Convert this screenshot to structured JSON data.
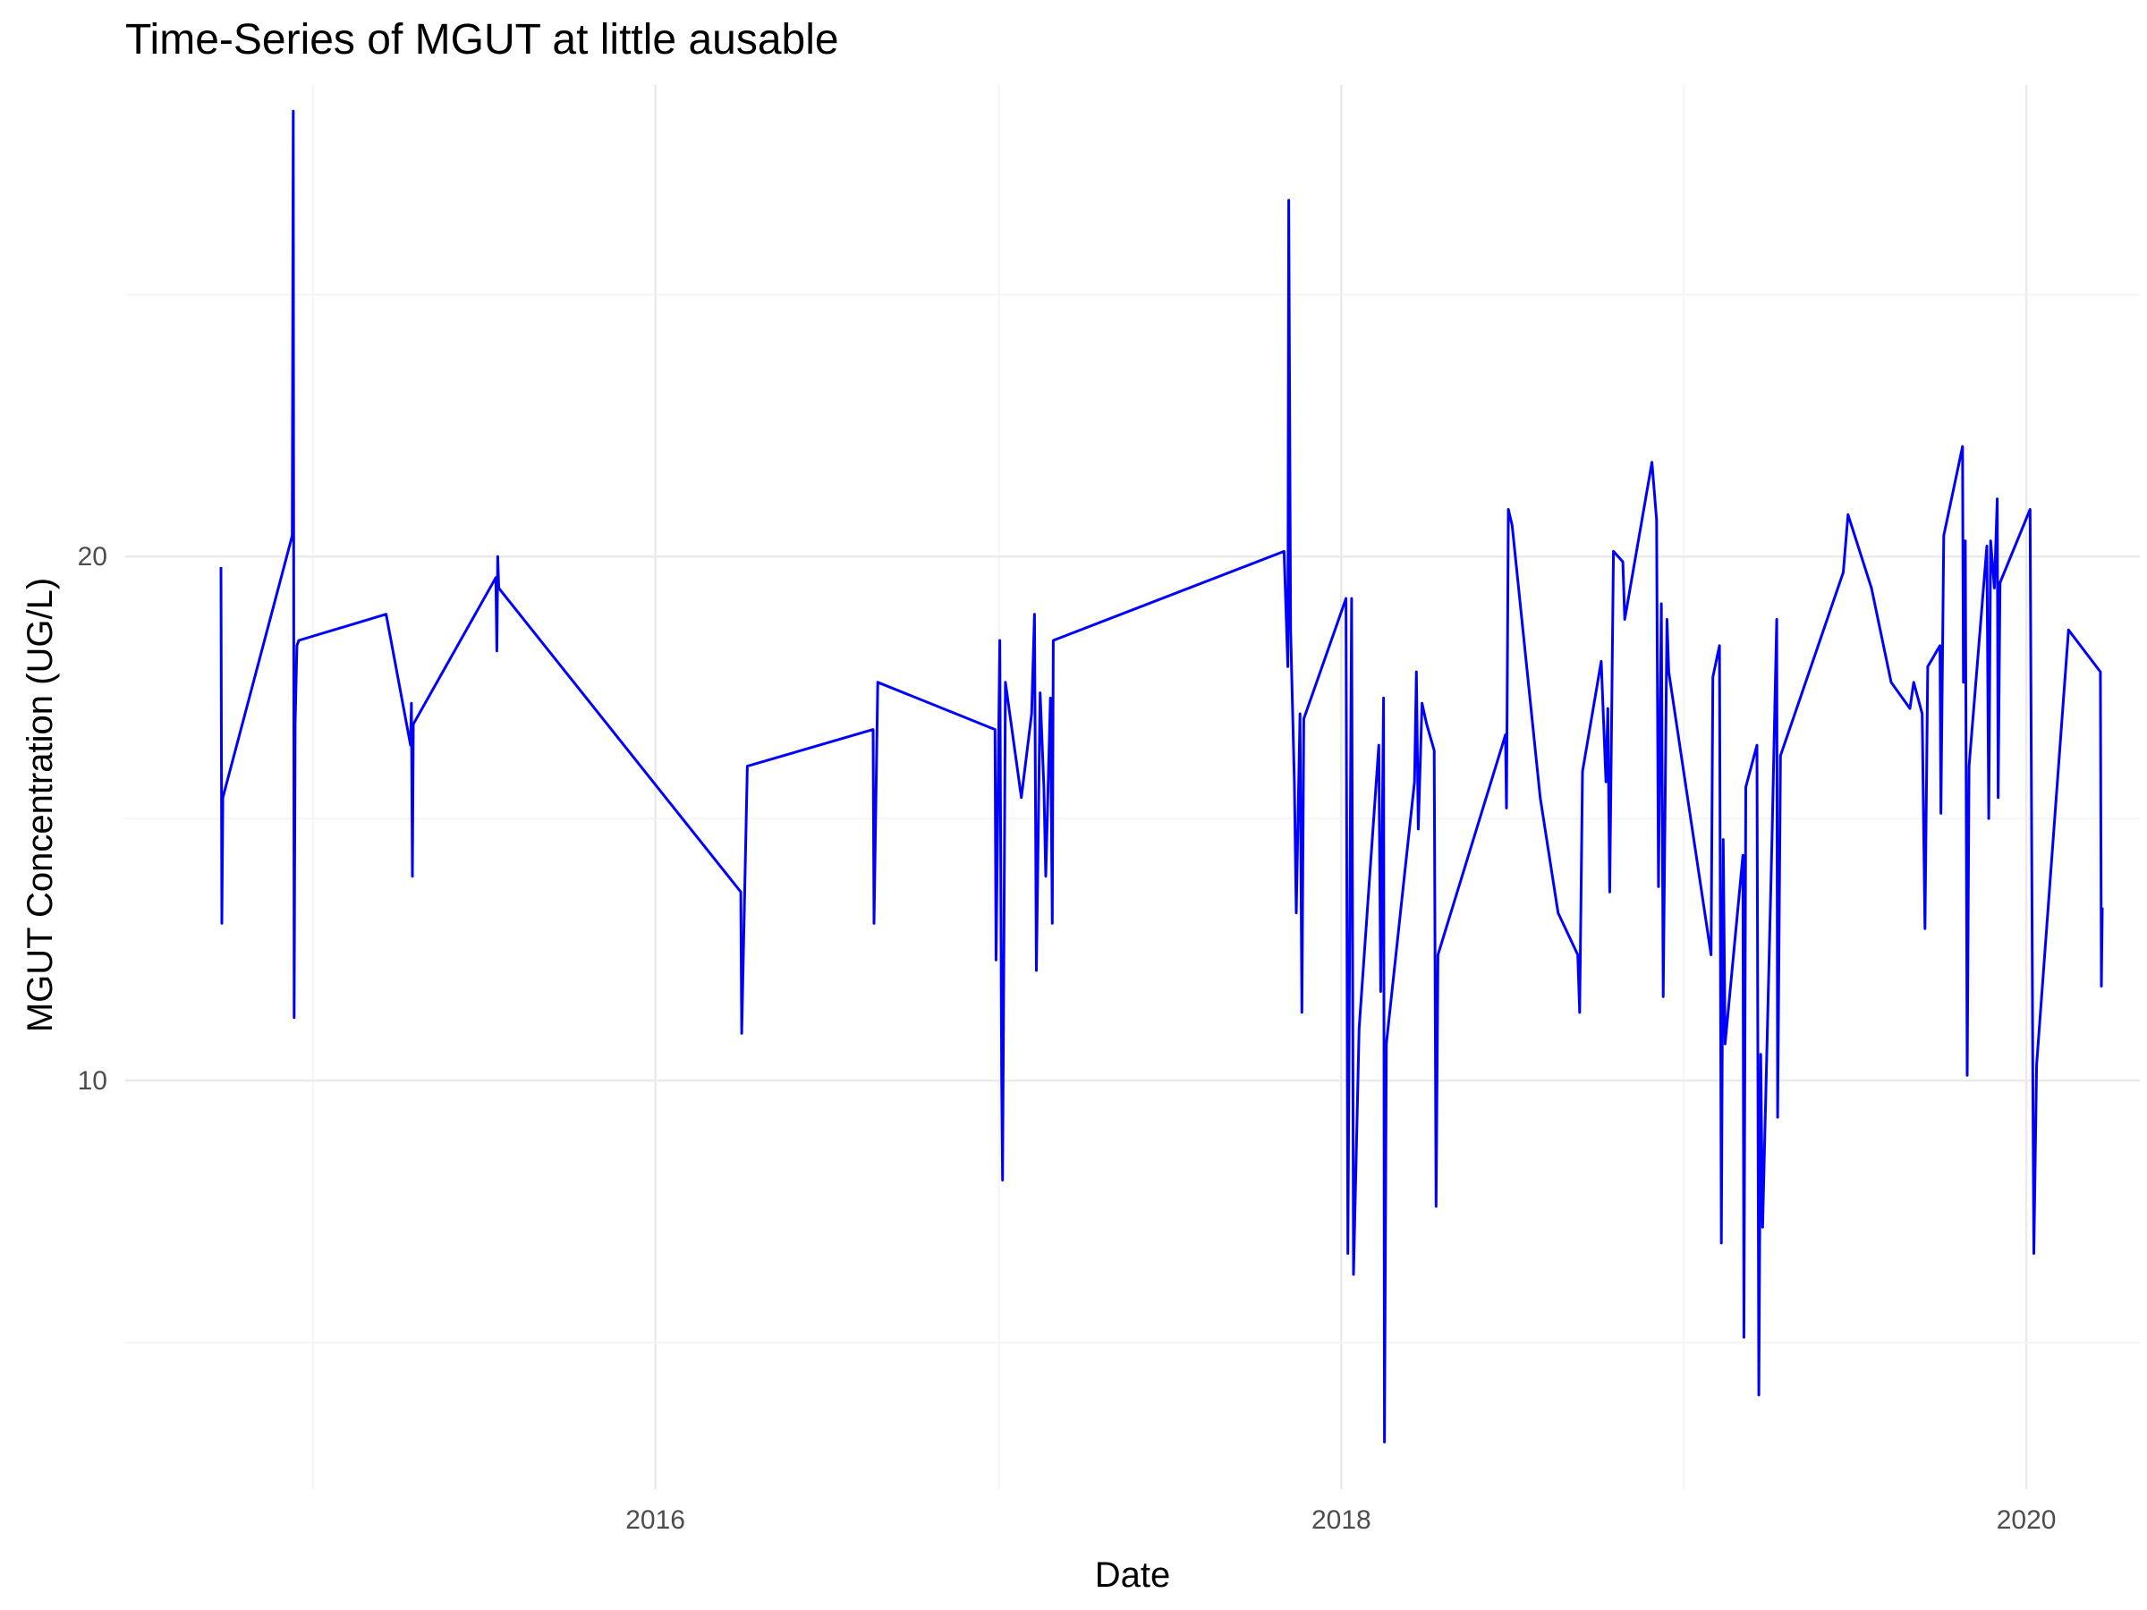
{
  "chart_data": {
    "type": "line",
    "title": "Time-Series of MGUT at little ausable",
    "xlabel": "Date",
    "ylabel": "MGUT Concentration (UG/L)",
    "x_ticks": [
      "2016",
      "2018",
      "2020"
    ],
    "y_ticks": [
      10,
      20
    ],
    "xlim": [
      "2014-06-15",
      "2020-05-01"
    ],
    "ylim": [
      2.2,
      29.0
    ],
    "grid": true,
    "legend": "none",
    "color": "#0000ff",
    "series": [
      {
        "points": [
          [
            "2014-09-25",
            19.8
          ],
          [
            "2014-09-26",
            13.0
          ],
          [
            "2014-09-27",
            15.4
          ],
          [
            "2014-12-10",
            20.4
          ],
          [
            "2014-12-11",
            28.5
          ],
          [
            "2014-12-12",
            11.2
          ],
          [
            "2014-12-13",
            16.8
          ],
          [
            "2014-12-15",
            18.3
          ],
          [
            "2014-12-17",
            18.4
          ],
          [
            "2015-03-20",
            18.9
          ],
          [
            "2015-04-15",
            16.4
          ],
          [
            "2015-04-16",
            17.2
          ],
          [
            "2015-04-17",
            13.9
          ],
          [
            "2015-04-18",
            16.8
          ],
          [
            "2015-07-15",
            19.6
          ],
          [
            "2015-07-16",
            18.2
          ],
          [
            "2015-07-17",
            20.0
          ],
          [
            "2015-07-18",
            19.4
          ],
          [
            "2016-04-01",
            13.6
          ],
          [
            "2016-04-02",
            10.9
          ],
          [
            "2016-04-08",
            16.0
          ],
          [
            "2016-08-20",
            16.7
          ],
          [
            "2016-08-21",
            13.0
          ],
          [
            "2016-08-25",
            17.6
          ],
          [
            "2016-12-28",
            16.7
          ],
          [
            "2016-12-29",
            12.3
          ],
          [
            "2017-01-02",
            18.4
          ],
          [
            "2017-01-04",
            10.1
          ],
          [
            "2017-01-05",
            8.1
          ],
          [
            "2017-01-08",
            17.6
          ],
          [
            "2017-01-25",
            15.4
          ],
          [
            "2017-02-05",
            17.0
          ],
          [
            "2017-02-08",
            18.9
          ],
          [
            "2017-02-10",
            12.1
          ],
          [
            "2017-02-14",
            17.4
          ],
          [
            "2017-02-18",
            15.6
          ],
          [
            "2017-02-20",
            13.9
          ],
          [
            "2017-02-25",
            17.3
          ],
          [
            "2017-02-27",
            13.0
          ],
          [
            "2017-02-28",
            18.4
          ],
          [
            "2017-11-01",
            20.1
          ],
          [
            "2017-11-05",
            17.9
          ],
          [
            "2017-11-06",
            26.8
          ],
          [
            "2017-11-08",
            18.6
          ],
          [
            "2017-11-12",
            15.7
          ],
          [
            "2017-11-14",
            13.2
          ],
          [
            "2017-11-18",
            17.0
          ],
          [
            "2017-11-20",
            11.3
          ],
          [
            "2017-11-22",
            16.9
          ],
          [
            "2018-01-06",
            19.2
          ],
          [
            "2018-01-08",
            6.7
          ],
          [
            "2018-01-12",
            19.2
          ],
          [
            "2018-01-14",
            6.3
          ],
          [
            "2018-01-20",
            11.0
          ],
          [
            "2018-02-10",
            16.4
          ],
          [
            "2018-02-12",
            11.7
          ],
          [
            "2018-02-15",
            17.3
          ],
          [
            "2018-02-16",
            3.1
          ],
          [
            "2018-02-18",
            10.7
          ],
          [
            "2018-03-20",
            15.7
          ],
          [
            "2018-03-22",
            17.8
          ],
          [
            "2018-03-24",
            14.8
          ],
          [
            "2018-03-28",
            17.2
          ],
          [
            "2018-04-02",
            16.8
          ],
          [
            "2018-04-10",
            16.3
          ],
          [
            "2018-04-12",
            7.6
          ],
          [
            "2018-04-14",
            12.4
          ],
          [
            "2018-06-25",
            16.6
          ],
          [
            "2018-06-26",
            15.2
          ],
          [
            "2018-06-28",
            20.9
          ],
          [
            "2018-07-02",
            20.6
          ],
          [
            "2018-08-01",
            15.4
          ],
          [
            "2018-08-20",
            13.2
          ],
          [
            "2018-09-10",
            12.4
          ],
          [
            "2018-09-12",
            11.3
          ],
          [
            "2018-09-15",
            15.9
          ],
          [
            "2018-10-05",
            18.0
          ],
          [
            "2018-10-10",
            15.7
          ],
          [
            "2018-10-12",
            17.1
          ],
          [
            "2018-10-14",
            13.6
          ],
          [
            "2018-10-18",
            20.1
          ],
          [
            "2018-10-28",
            19.9
          ],
          [
            "2018-10-30",
            18.8
          ],
          [
            "2018-11-28",
            21.8
          ],
          [
            "2018-12-03",
            20.7
          ],
          [
            "2018-12-05",
            13.7
          ],
          [
            "2018-12-08",
            19.1
          ],
          [
            "2018-12-10",
            11.6
          ],
          [
            "2018-12-14",
            18.8
          ],
          [
            "2018-12-16",
            17.8
          ],
          [
            "2019-01-30",
            12.4
          ],
          [
            "2019-02-01",
            17.7
          ],
          [
            "2019-02-08",
            18.3
          ],
          [
            "2019-02-10",
            6.9
          ],
          [
            "2019-02-12",
            14.6
          ],
          [
            "2019-02-14",
            10.7
          ],
          [
            "2019-03-05",
            14.3
          ],
          [
            "2019-03-06",
            5.1
          ],
          [
            "2019-03-08",
            15.6
          ],
          [
            "2019-03-20",
            16.4
          ],
          [
            "2019-03-22",
            4.0
          ],
          [
            "2019-03-24",
            10.5
          ],
          [
            "2019-03-26",
            7.2
          ],
          [
            "2019-04-05",
            14.6
          ],
          [
            "2019-04-10",
            18.8
          ],
          [
            "2019-04-11",
            9.3
          ],
          [
            "2019-04-14",
            16.2
          ],
          [
            "2019-06-20",
            19.7
          ],
          [
            "2019-06-25",
            20.8
          ],
          [
            "2019-07-20",
            19.4
          ],
          [
            "2019-08-10",
            17.6
          ],
          [
            "2019-08-30",
            17.1
          ],
          [
            "2019-09-03",
            17.6
          ],
          [
            "2019-09-12",
            17.0
          ],
          [
            "2019-09-15",
            12.9
          ],
          [
            "2019-09-18",
            17.9
          ],
          [
            "2019-10-01",
            18.3
          ],
          [
            "2019-10-02",
            15.1
          ],
          [
            "2019-10-05",
            20.4
          ],
          [
            "2019-10-25",
            22.1
          ],
          [
            "2019-10-26",
            17.6
          ],
          [
            "2019-10-28",
            20.3
          ],
          [
            "2019-10-30",
            10.1
          ],
          [
            "2019-11-01",
            16.0
          ],
          [
            "2019-11-20",
            20.2
          ],
          [
            "2019-11-22",
            15.0
          ],
          [
            "2019-11-24",
            20.3
          ],
          [
            "2019-11-28",
            19.4
          ],
          [
            "2019-12-01",
            21.1
          ],
          [
            "2019-12-02",
            15.4
          ],
          [
            "2019-12-04",
            19.5
          ],
          [
            "2020-01-05",
            20.9
          ],
          [
            "2020-01-08",
            10.0
          ],
          [
            "2020-01-09",
            6.7
          ],
          [
            "2020-01-12",
            10.3
          ],
          [
            "2020-02-15",
            18.6
          ],
          [
            "2020-03-20",
            17.8
          ],
          [
            "2020-03-21",
            11.8
          ],
          [
            "2020-03-22",
            13.3
          ]
        ]
      }
    ]
  }
}
